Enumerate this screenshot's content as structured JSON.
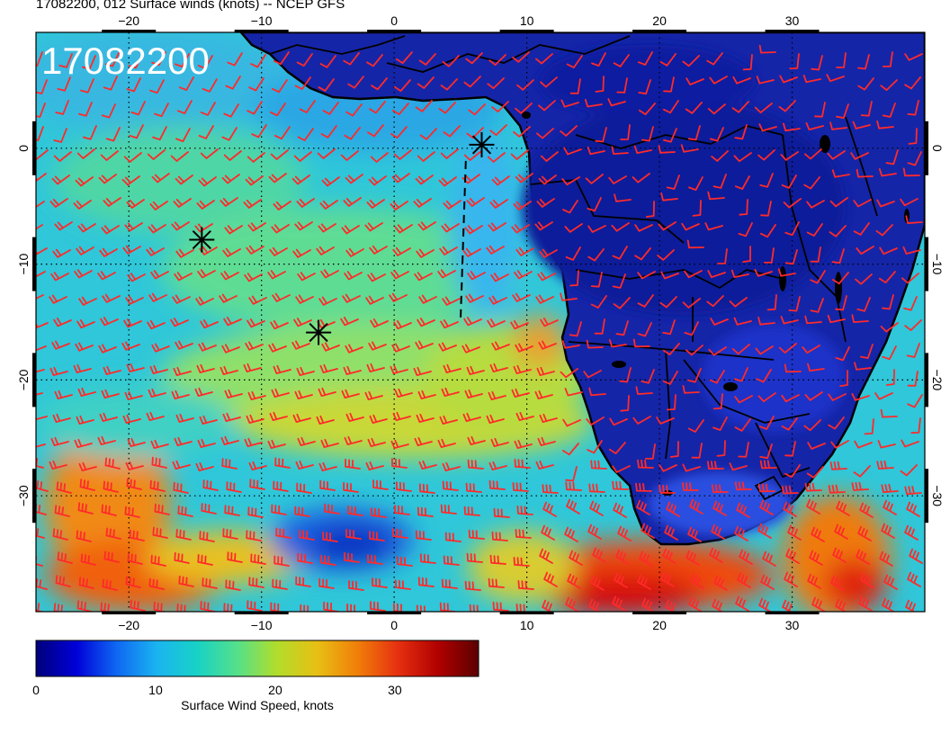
{
  "title": "17082200, 012 Surface winds (knots) -- NCEP GFS",
  "stamp": "17082200",
  "map": {
    "lon_range": [
      -27,
      40
    ],
    "lat_range": [
      -40,
      10
    ],
    "lon_ticks": [
      "−20",
      "−10",
      "0",
      "10",
      "20",
      "30"
    ],
    "lat_ticks": [
      "0",
      "−10",
      "−20",
      "−30"
    ],
    "barb_color": "#ff2a2a",
    "land_style": "dark blue with black coastlines and borders"
  },
  "markers": [
    {
      "name": "asterisk-marker",
      "lon": -14.5,
      "lat": -7.9
    },
    {
      "name": "asterisk-marker",
      "lon": -5.7,
      "lat": -15.9
    },
    {
      "name": "asterisk-marker",
      "lon": 6.6,
      "lat": 0.3
    }
  ],
  "track": {
    "from": [
      5.4,
      -1.1
    ],
    "to": [
      5.0,
      -15.0
    ]
  },
  "colorbar": {
    "title": "Surface Wind Speed, knots",
    "tick_labels": [
      "0",
      "10",
      "20",
      "30"
    ],
    "range": [
      0,
      37
    ],
    "colors": [
      "#00007a",
      "#0000d8",
      "#0f67f2",
      "#1ab4f0",
      "#18d2c6",
      "#54e08a",
      "#b2dd2a",
      "#e8bf14",
      "#f07e0a",
      "#e63010",
      "#b00000",
      "#5c0000"
    ]
  }
}
